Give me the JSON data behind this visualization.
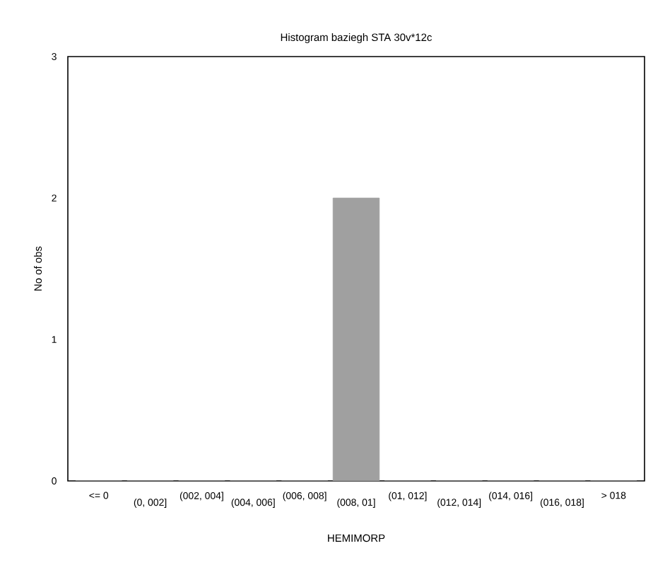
{
  "chart_data": {
    "type": "bar",
    "title": "Histogram baziegh STA 30v*12c",
    "xlabel": "HEMIMORP",
    "ylabel": "No of obs",
    "categories": [
      "<= 0",
      "(0, 002]",
      "(002, 004]",
      "(004, 006]",
      "(006, 008]",
      "(008, 01]",
      "(01, 012]",
      "(012, 014]",
      "(014, 016]",
      "(016, 018]",
      "> 018"
    ],
    "values": [
      0,
      0,
      0,
      0,
      0,
      2,
      0,
      0,
      0,
      0,
      0
    ],
    "color": "#a0a0a0",
    "ylim": [
      0,
      3
    ],
    "yticks": [
      0,
      1,
      2,
      3
    ]
  }
}
